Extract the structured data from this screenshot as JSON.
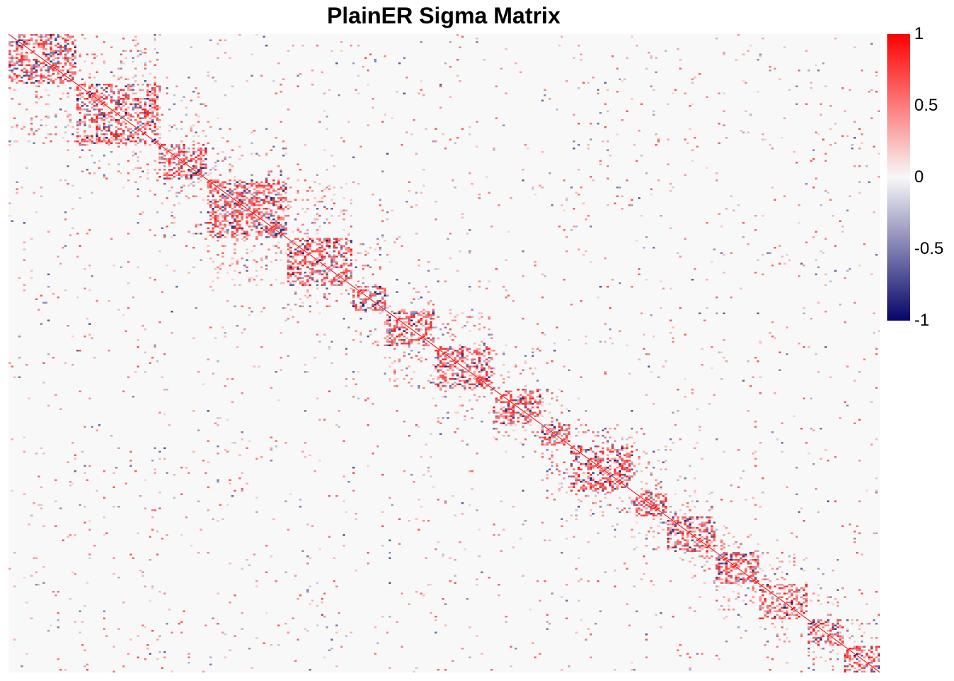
{
  "chart_data": {
    "type": "heatmap",
    "title": "PlainER Sigma Matrix",
    "xlabel": "",
    "ylabel": "",
    "color_scale": {
      "min": -1,
      "max": 1,
      "low_color": "#05056a",
      "mid_color": "#f8f8f8",
      "high_color": "#ff0000",
      "ticks": [
        {
          "value": 1,
          "label": "1"
        },
        {
          "value": 0.5,
          "label": "0.5"
        },
        {
          "value": 0,
          "label": "0"
        },
        {
          "value": -0.5,
          "label": "-0.5"
        },
        {
          "value": -1,
          "label": "-1"
        }
      ]
    },
    "diagonal_value": 1,
    "matrix_size": 360,
    "block_boundaries": [
      0,
      28,
      62,
      82,
      115,
      142,
      156,
      176,
      200,
      220,
      232,
      258,
      272,
      292,
      310,
      330,
      345,
      360
    ],
    "legend_position": "right"
  }
}
